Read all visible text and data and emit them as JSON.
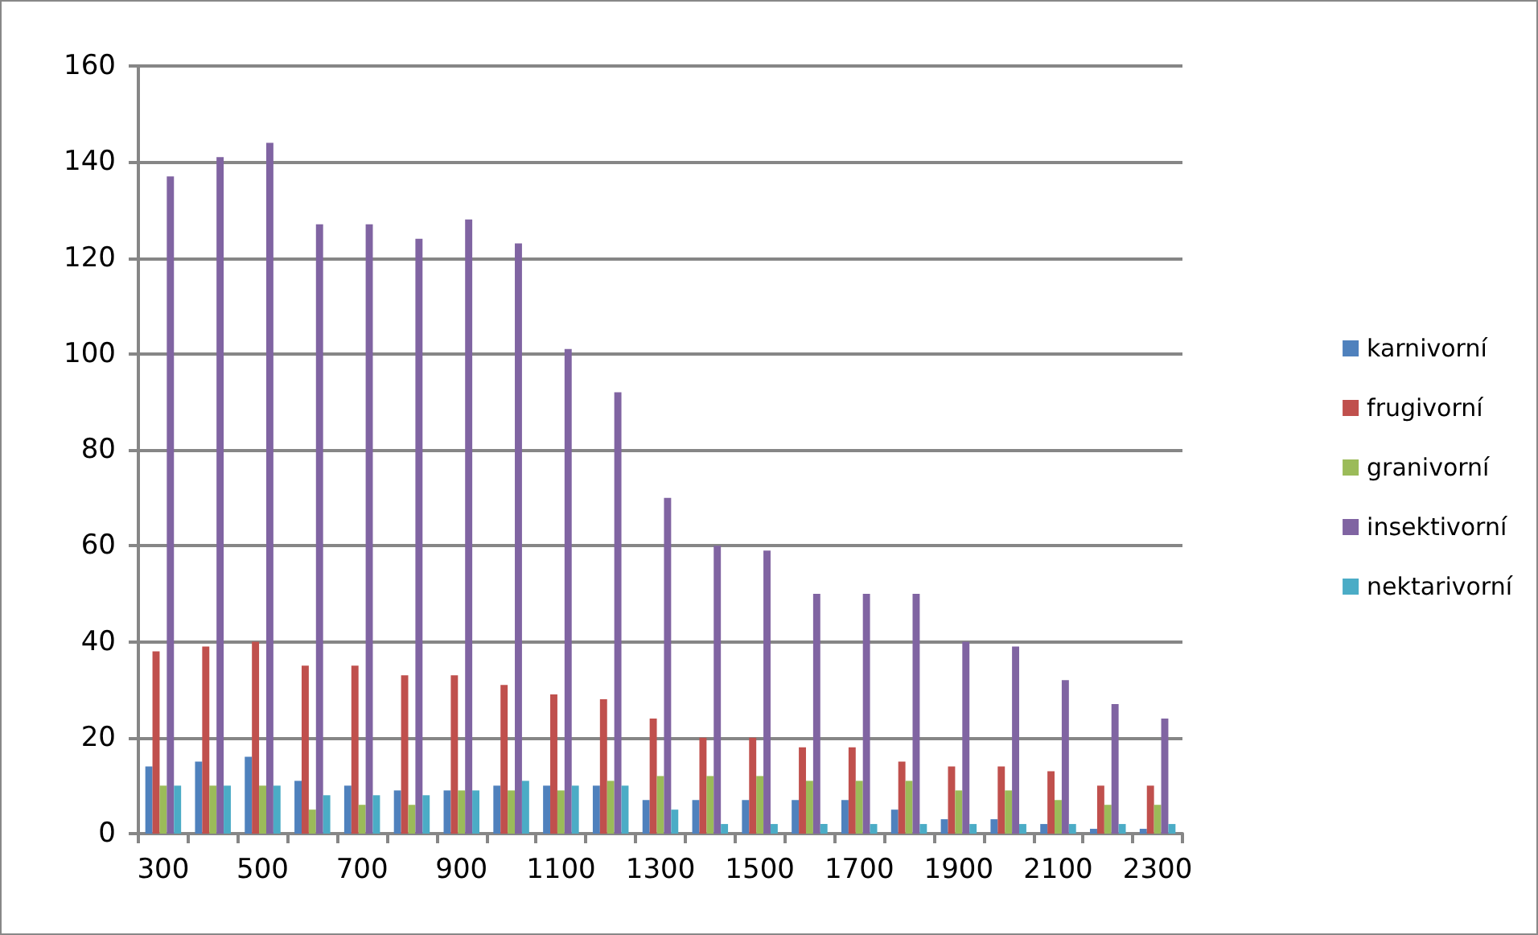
{
  "chart_data": {
    "type": "bar",
    "categories": [
      "300",
      null,
      "500",
      null,
      "700",
      null,
      "900",
      null,
      "1100",
      null,
      "1300",
      null,
      "1500",
      null,
      "1700",
      null,
      "1900",
      null,
      "2100",
      null,
      "2300"
    ],
    "series": [
      {
        "name": "karnivorní",
        "color": "#4f81bd",
        "values": [
          14,
          15,
          16,
          11,
          10,
          9,
          9,
          10,
          10,
          10,
          7,
          7,
          7,
          7,
          7,
          5,
          3,
          3,
          2,
          1,
          1
        ]
      },
      {
        "name": "frugivorní",
        "color": "#c0504d",
        "values": [
          38,
          39,
          40,
          35,
          35,
          33,
          33,
          31,
          29,
          28,
          24,
          20,
          20,
          18,
          18,
          15,
          14,
          14,
          13,
          10,
          10
        ]
      },
      {
        "name": "granivorní",
        "color": "#9bbb59",
        "values": [
          10,
          10,
          10,
          5,
          6,
          6,
          9,
          9,
          9,
          11,
          12,
          12,
          12,
          11,
          11,
          11,
          9,
          9,
          7,
          6,
          6
        ]
      },
      {
        "name": "insektivorní",
        "color": "#8064a2",
        "values": [
          137,
          141,
          144,
          127,
          127,
          124,
          128,
          123,
          101,
          92,
          70,
          60,
          59,
          50,
          50,
          50,
          40,
          39,
          32,
          27,
          24
        ]
      },
      {
        "name": "nektarivorní",
        "color": "#4bacc6",
        "values": [
          10,
          10,
          10,
          8,
          8,
          8,
          9,
          11,
          10,
          10,
          5,
          2,
          2,
          2,
          2,
          2,
          2,
          2,
          2,
          2,
          2
        ]
      }
    ],
    "ylim": [
      0,
      160
    ],
    "yticks": [
      0,
      20,
      40,
      60,
      80,
      100,
      120,
      140,
      160
    ],
    "grid": "y",
    "legend": "right"
  }
}
